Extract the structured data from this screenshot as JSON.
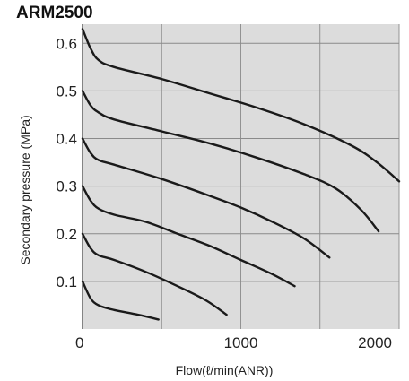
{
  "colors": {
    "plot_background": "#dcdcdc",
    "grid": "#8a8a8a",
    "curve": "#1a1a1a",
    "text": "#222222"
  },
  "chart_data": {
    "type": "line",
    "title": "ARM2500",
    "xlabel": "Flow(ℓ/min(ANR))",
    "ylabel": "Secondary pressure (MPa)",
    "xlim": [
      0,
      2000
    ],
    "ylim": [
      0,
      0.64
    ],
    "x_ticks": [
      {
        "value": 0,
        "label": "0"
      },
      {
        "value": 1000,
        "label": "1000"
      },
      {
        "value": 2000,
        "label": "2000"
      }
    ],
    "y_ticks": [
      {
        "value": 0.1,
        "label": "0.1"
      },
      {
        "value": 0.2,
        "label": "0.2"
      },
      {
        "value": 0.3,
        "label": "0.3"
      },
      {
        "value": 0.4,
        "label": "0.4"
      },
      {
        "value": 0.5,
        "label": "0.5"
      },
      {
        "value": 0.6,
        "label": "0.6"
      }
    ],
    "x_grid": [
      500,
      1000,
      1500,
      2000
    ],
    "y_grid": [
      0.1,
      0.2,
      0.3,
      0.4,
      0.5,
      0.6
    ],
    "grid": true,
    "series": [
      {
        "points": [
          [
            0,
            0.1
          ],
          [
            50,
            0.065
          ],
          [
            100,
            0.05
          ],
          [
            200,
            0.04
          ],
          [
            350,
            0.03
          ],
          [
            480,
            0.02
          ]
        ]
      },
      {
        "points": [
          [
            0,
            0.2
          ],
          [
            50,
            0.17
          ],
          [
            100,
            0.155
          ],
          [
            200,
            0.145
          ],
          [
            400,
            0.12
          ],
          [
            600,
            0.09
          ],
          [
            780,
            0.06
          ],
          [
            910,
            0.03
          ]
        ]
      },
      {
        "points": [
          [
            0,
            0.3
          ],
          [
            50,
            0.27
          ],
          [
            100,
            0.253
          ],
          [
            200,
            0.24
          ],
          [
            400,
            0.225
          ],
          [
            600,
            0.2
          ],
          [
            800,
            0.175
          ],
          [
            1000,
            0.145
          ],
          [
            1200,
            0.115
          ],
          [
            1340,
            0.09
          ]
        ]
      },
      {
        "points": [
          [
            0,
            0.4
          ],
          [
            50,
            0.37
          ],
          [
            100,
            0.355
          ],
          [
            200,
            0.345
          ],
          [
            500,
            0.315
          ],
          [
            800,
            0.28
          ],
          [
            1000,
            0.255
          ],
          [
            1200,
            0.225
          ],
          [
            1400,
            0.19
          ],
          [
            1560,
            0.15
          ]
        ]
      },
      {
        "points": [
          [
            0,
            0.5
          ],
          [
            50,
            0.47
          ],
          [
            100,
            0.455
          ],
          [
            200,
            0.44
          ],
          [
            500,
            0.415
          ],
          [
            800,
            0.39
          ],
          [
            1100,
            0.36
          ],
          [
            1400,
            0.325
          ],
          [
            1600,
            0.295
          ],
          [
            1760,
            0.25
          ],
          [
            1870,
            0.205
          ]
        ]
      },
      {
        "points": [
          [
            0,
            0.63
          ],
          [
            50,
            0.59
          ],
          [
            100,
            0.565
          ],
          [
            200,
            0.55
          ],
          [
            500,
            0.525
          ],
          [
            800,
            0.495
          ],
          [
            1100,
            0.465
          ],
          [
            1400,
            0.43
          ],
          [
            1700,
            0.385
          ],
          [
            1860,
            0.35
          ],
          [
            2000,
            0.31
          ]
        ]
      }
    ]
  }
}
